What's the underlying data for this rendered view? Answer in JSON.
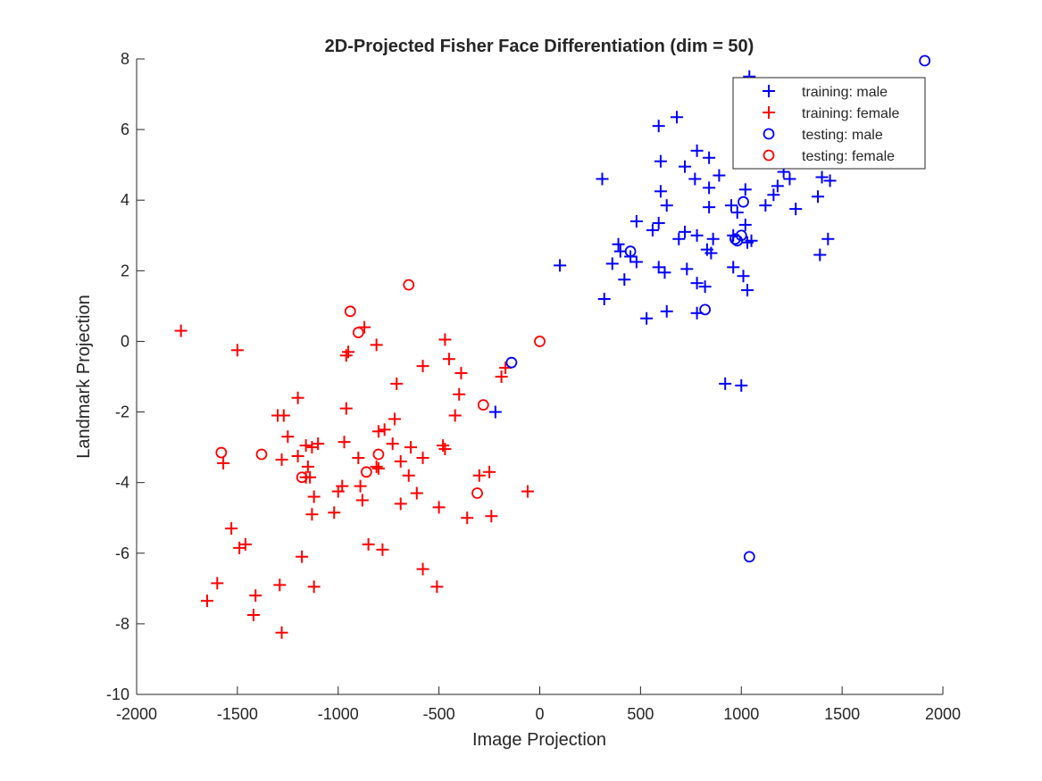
{
  "chart_data": {
    "type": "scatter",
    "title": "2D-Projected Fisher Face Differentiation (dim = 50)",
    "xlabel": "Image Projection",
    "ylabel": "Landmark Projection",
    "xlim": [
      -2000,
      2000
    ],
    "ylim": [
      -10,
      8
    ],
    "xticks": [
      -2000,
      -1500,
      -1000,
      -500,
      0,
      500,
      1000,
      1500,
      2000
    ],
    "yticks": [
      -10,
      -8,
      -6,
      -4,
      -2,
      0,
      2,
      4,
      6,
      8
    ],
    "xtick_labels": [
      "-2000",
      "-1500",
      "-1000",
      "-500",
      "0",
      "500",
      "1000",
      "1500",
      "2000"
    ],
    "ytick_labels": [
      "-10",
      "-8",
      "-6",
      "-4",
      "-2",
      "0",
      "2",
      "4",
      "6",
      "8"
    ],
    "grid": false,
    "legend_position": "top-right",
    "series": [
      {
        "name": "training: male",
        "marker": "plus",
        "color": "#0000ff",
        "points": [
          [
            1040,
            7.5
          ],
          [
            680,
            6.35
          ],
          [
            590,
            6.1
          ],
          [
            780,
            5.4
          ],
          [
            600,
            5.1
          ],
          [
            720,
            4.95
          ],
          [
            840,
            5.2
          ],
          [
            310,
            4.6
          ],
          [
            770,
            4.6
          ],
          [
            890,
            4.7
          ],
          [
            840,
            4.35
          ],
          [
            1020,
            4.3
          ],
          [
            600,
            4.25
          ],
          [
            630,
            3.85
          ],
          [
            840,
            3.8
          ],
          [
            950,
            3.85
          ],
          [
            1120,
            3.85
          ],
          [
            1160,
            4.15
          ],
          [
            1210,
            4.8
          ],
          [
            1240,
            4.6
          ],
          [
            1180,
            4.4
          ],
          [
            1400,
            4.65
          ],
          [
            1440,
            4.55
          ],
          [
            1380,
            4.1
          ],
          [
            1270,
            3.75
          ],
          [
            980,
            3.65
          ],
          [
            1020,
            3.3
          ],
          [
            480,
            3.4
          ],
          [
            590,
            3.35
          ],
          [
            560,
            3.15
          ],
          [
            690,
            2.9
          ],
          [
            720,
            3.1
          ],
          [
            780,
            3.0
          ],
          [
            860,
            2.9
          ],
          [
            960,
            3.0
          ],
          [
            1030,
            2.8
          ],
          [
            1050,
            2.85
          ],
          [
            1430,
            2.9
          ],
          [
            1390,
            2.45
          ],
          [
            390,
            2.75
          ],
          [
            400,
            2.55
          ],
          [
            450,
            2.4
          ],
          [
            480,
            2.25
          ],
          [
            360,
            2.2
          ],
          [
            100,
            2.15
          ],
          [
            590,
            2.1
          ],
          [
            620,
            1.95
          ],
          [
            730,
            2.05
          ],
          [
            850,
            2.5
          ],
          [
            830,
            2.6
          ],
          [
            960,
            2.1
          ],
          [
            1010,
            1.85
          ],
          [
            1030,
            1.45
          ],
          [
            780,
            1.65
          ],
          [
            820,
            1.55
          ],
          [
            420,
            1.75
          ],
          [
            320,
            1.2
          ],
          [
            630,
            0.85
          ],
          [
            530,
            0.65
          ],
          [
            780,
            0.8
          ],
          [
            920,
            -1.2
          ],
          [
            1000,
            -1.25
          ],
          [
            -220,
            -2.0
          ]
        ]
      },
      {
        "name": "training: female",
        "marker": "plus",
        "color": "#ff0000",
        "points": [
          [
            -1780,
            0.3
          ],
          [
            -1500,
            -0.25
          ],
          [
            -870,
            0.4
          ],
          [
            -810,
            -0.1
          ],
          [
            -950,
            -0.3
          ],
          [
            -960,
            -0.4
          ],
          [
            -470,
            0.05
          ],
          [
            -580,
            -0.7
          ],
          [
            -450,
            -0.5
          ],
          [
            -390,
            -0.9
          ],
          [
            -190,
            -1.0
          ],
          [
            -170,
            -0.75
          ],
          [
            -710,
            -1.2
          ],
          [
            -1200,
            -1.6
          ],
          [
            -400,
            -1.5
          ],
          [
            -960,
            -1.9
          ],
          [
            -1300,
            -2.1
          ],
          [
            -1270,
            -2.1
          ],
          [
            -420,
            -2.1
          ],
          [
            -720,
            -2.2
          ],
          [
            -800,
            -2.55
          ],
          [
            -770,
            -2.5
          ],
          [
            -1250,
            -2.7
          ],
          [
            -1160,
            -2.95
          ],
          [
            -1130,
            -3.0
          ],
          [
            -1100,
            -2.9
          ],
          [
            -970,
            -2.85
          ],
          [
            -730,
            -2.9
          ],
          [
            -640,
            -3.0
          ],
          [
            -480,
            -2.95
          ],
          [
            -470,
            -3.05
          ],
          [
            -1200,
            -3.25
          ],
          [
            -1280,
            -3.35
          ],
          [
            -1570,
            -3.45
          ],
          [
            -1150,
            -3.55
          ],
          [
            -900,
            -3.3
          ],
          [
            -810,
            -3.55
          ],
          [
            -800,
            -3.6
          ],
          [
            -690,
            -3.4
          ],
          [
            -580,
            -3.3
          ],
          [
            -1140,
            -3.85
          ],
          [
            -1160,
            -3.85
          ],
          [
            -650,
            -3.8
          ],
          [
            -250,
            -3.7
          ],
          [
            -300,
            -3.8
          ],
          [
            -980,
            -4.1
          ],
          [
            -1000,
            -4.25
          ],
          [
            -890,
            -4.1
          ],
          [
            -880,
            -4.5
          ],
          [
            -610,
            -4.3
          ],
          [
            -690,
            -4.6
          ],
          [
            -1020,
            -4.85
          ],
          [
            -1120,
            -4.4
          ],
          [
            -1130,
            -4.9
          ],
          [
            -500,
            -4.7
          ],
          [
            -360,
            -5.0
          ],
          [
            -240,
            -4.95
          ],
          [
            -60,
            -4.25
          ],
          [
            -1530,
            -5.3
          ],
          [
            -1460,
            -5.75
          ],
          [
            -1490,
            -5.85
          ],
          [
            -850,
            -5.75
          ],
          [
            -780,
            -5.9
          ],
          [
            -1180,
            -6.1
          ],
          [
            -580,
            -6.45
          ],
          [
            -1600,
            -6.85
          ],
          [
            -1290,
            -6.9
          ],
          [
            -1120,
            -6.95
          ],
          [
            -510,
            -6.95
          ],
          [
            -1410,
            -7.2
          ],
          [
            -1650,
            -7.35
          ],
          [
            -1420,
            -7.75
          ],
          [
            -1280,
            -8.25
          ]
        ]
      },
      {
        "name": "testing: male",
        "marker": "circle",
        "color": "#0000ff",
        "points": [
          [
            1910,
            7.95
          ],
          [
            1010,
            3.95
          ],
          [
            450,
            2.55
          ],
          [
            1000,
            3.0
          ],
          [
            980,
            2.85
          ],
          [
            970,
            2.9
          ],
          [
            820,
            0.9
          ],
          [
            -140,
            -0.6
          ],
          [
            1040,
            -6.1
          ]
        ]
      },
      {
        "name": "testing: female",
        "marker": "circle",
        "color": "#ff0000",
        "points": [
          [
            -650,
            1.6
          ],
          [
            -940,
            0.85
          ],
          [
            -900,
            0.25
          ],
          [
            0,
            0.0
          ],
          [
            -280,
            -1.8
          ],
          [
            -1580,
            -3.15
          ],
          [
            -1380,
            -3.2
          ],
          [
            -800,
            -3.2
          ],
          [
            -1180,
            -3.85
          ],
          [
            -860,
            -3.7
          ],
          [
            -310,
            -4.3
          ]
        ]
      }
    ]
  }
}
